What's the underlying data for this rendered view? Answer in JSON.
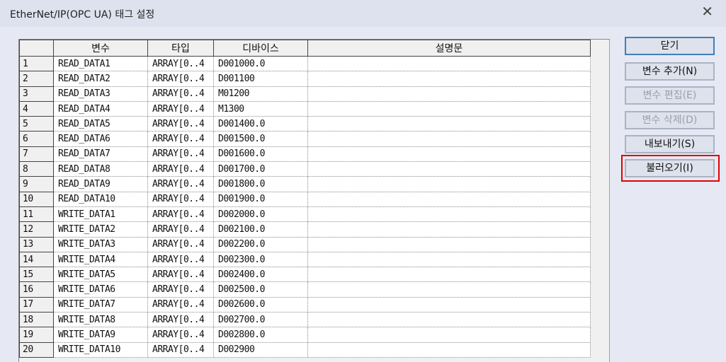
{
  "window": {
    "title": "EtherNet/IP(OPC UA) 태그 설정",
    "close_icon": "close-icon"
  },
  "table": {
    "columns": [
      "",
      "변수",
      "타입",
      "디바이스",
      "설명문"
    ],
    "rows": [
      [
        "1",
        "READ_DATA1",
        "ARRAY[0..4",
        "D001000.0",
        ""
      ],
      [
        "2",
        "READ_DATA2",
        "ARRAY[0..4",
        "D001100",
        ""
      ],
      [
        "3",
        "READ_DATA3",
        "ARRAY[0..4",
        "M01200",
        ""
      ],
      [
        "4",
        "READ_DATA4",
        "ARRAY[0..4",
        "M1300",
        ""
      ],
      [
        "5",
        "READ_DATA5",
        "ARRAY[0..4",
        "D001400.0",
        ""
      ],
      [
        "6",
        "READ_DATA6",
        "ARRAY[0..4",
        "D001500.0",
        ""
      ],
      [
        "7",
        "READ_DATA7",
        "ARRAY[0..4",
        "D001600.0",
        ""
      ],
      [
        "8",
        "READ_DATA8",
        "ARRAY[0..4",
        "D001700.0",
        ""
      ],
      [
        "9",
        "READ_DATA9",
        "ARRAY[0..4",
        "D001800.0",
        ""
      ],
      [
        "10",
        "READ_DATA10",
        "ARRAY[0..4",
        "D001900.0",
        ""
      ],
      [
        "11",
        "WRITE_DATA1",
        "ARRAY[0..4",
        "D002000.0",
        ""
      ],
      [
        "12",
        "WRITE_DATA2",
        "ARRAY[0..4",
        "D002100.0",
        ""
      ],
      [
        "13",
        "WRITE_DATA3",
        "ARRAY[0..4",
        "D002200.0",
        ""
      ],
      [
        "14",
        "WRITE_DATA4",
        "ARRAY[0..4",
        "D002300.0",
        ""
      ],
      [
        "15",
        "WRITE_DATA5",
        "ARRAY[0..4",
        "D002400.0",
        ""
      ],
      [
        "16",
        "WRITE_DATA6",
        "ARRAY[0..4",
        "D002500.0",
        ""
      ],
      [
        "17",
        "WRITE_DATA7",
        "ARRAY[0..4",
        "D002600.0",
        ""
      ],
      [
        "18",
        "WRITE_DATA8",
        "ARRAY[0..4",
        "D002700.0",
        ""
      ],
      [
        "19",
        "WRITE_DATA9",
        "ARRAY[0..4",
        "D002800.0",
        ""
      ],
      [
        "20",
        "WRITE_DATA10",
        "ARRAY[0..4",
        "D002900",
        ""
      ]
    ]
  },
  "buttons": {
    "close": "닫기",
    "add": "변수 추가(N)",
    "edit": "변수 편집(E)",
    "delete": "변수 삭제(D)",
    "export": "내보내기(S)",
    "import": "불러오기(I)"
  },
  "highlight_color": "#e00000"
}
